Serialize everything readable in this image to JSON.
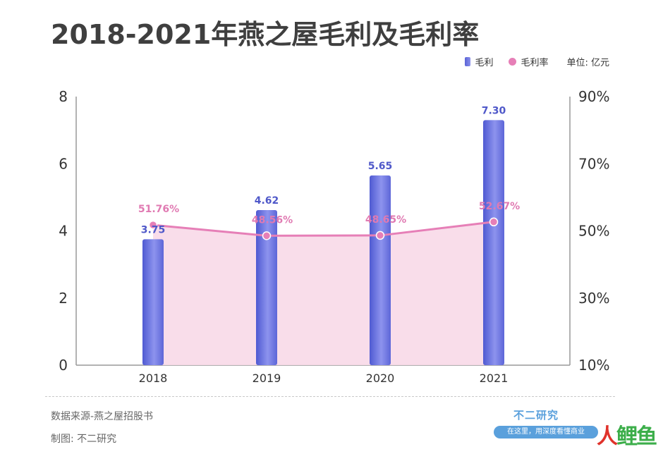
{
  "title": "2018-2021年燕之屋毛利及毛利率",
  "legend": {
    "bar_label": "毛利",
    "line_label": "毛利率",
    "unit": "单位: 亿元"
  },
  "colors": {
    "bar_top": "#7f86ea",
    "bar_bottom": "#5560d4",
    "line": "#e67fb7",
    "area": "#f8d9e8",
    "bar_label": "#4f58c9",
    "line_label": "#e07ab2",
    "axis": "#999999"
  },
  "chart_data": {
    "type": "bar",
    "categories": [
      "2018",
      "2019",
      "2020",
      "2021"
    ],
    "series": [
      {
        "name": "毛利",
        "type": "bar",
        "axis": "left",
        "values": [
          3.75,
          4.62,
          5.65,
          7.3
        ],
        "labels": [
          "3.75",
          "4.62",
          "5.65",
          "7.30"
        ]
      },
      {
        "name": "毛利率",
        "type": "line",
        "axis": "right",
        "values": [
          51.76,
          48.56,
          48.65,
          52.67
        ],
        "labels": [
          "51.76%",
          "48.56%",
          "48.65%",
          "52.67%"
        ]
      }
    ],
    "y_left": {
      "range": [
        0,
        8
      ],
      "ticks": [
        "0",
        "2",
        "4",
        "6",
        "8"
      ]
    },
    "y_right": {
      "range": [
        10,
        90
      ],
      "ticks": [
        "10%",
        "30%",
        "50%",
        "70%",
        "90%"
      ]
    },
    "grid": false,
    "legend_position": "top-right"
  },
  "footer": {
    "source": "数据来源-燕之屋招股书",
    "maker": "制图: 不二研究",
    "brand": "不二研究",
    "brand_tagline": "在这里，用深度看懂商业"
  },
  "corner_logo": {
    "part1": "人",
    "part2": "鲤鱼"
  }
}
